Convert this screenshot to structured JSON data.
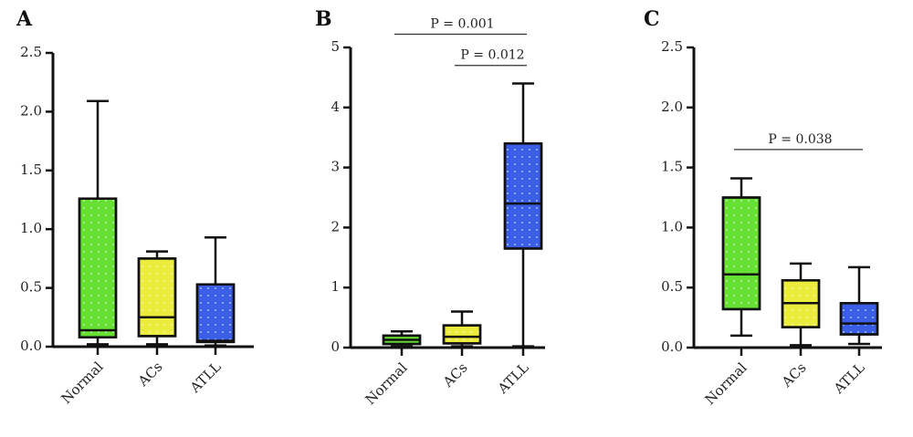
{
  "colors": {
    "Normal": "#66e033",
    "ACs": "#ecec3c",
    "ATLL": "#3a5fe6",
    "stroke": "#111111"
  },
  "chart_data": [
    {
      "panel": "A",
      "type": "box",
      "categories": [
        "Normal",
        "ACs",
        "ATLL"
      ],
      "ylim": [
        0,
        2.5
      ],
      "yticks": [
        "0.0",
        "0.5",
        "1.0",
        "1.5",
        "2.0",
        "2.5"
      ],
      "boxes": [
        {
          "category": "Normal",
          "min": 0.02,
          "q1": 0.08,
          "median": 0.14,
          "q3": 1.26,
          "max": 2.09
        },
        {
          "category": "ACs",
          "min": 0.02,
          "q1": 0.09,
          "median": 0.25,
          "q3": 0.75,
          "max": 0.81
        },
        {
          "category": "ATLL",
          "min": 0.01,
          "q1": 0.04,
          "median": 0.05,
          "q3": 0.53,
          "max": 0.93
        }
      ],
      "pvalues": []
    },
    {
      "panel": "B",
      "type": "box",
      "categories": [
        "Normal",
        "ACs",
        "ATLL"
      ],
      "ylim": [
        0,
        5
      ],
      "yticks": [
        "0",
        "1",
        "2",
        "3",
        "4",
        "5"
      ],
      "boxes": [
        {
          "category": "Normal",
          "min": 0.02,
          "q1": 0.06,
          "median": 0.13,
          "q3": 0.2,
          "max": 0.27
        },
        {
          "category": "ACs",
          "min": 0.02,
          "q1": 0.07,
          "median": 0.18,
          "q3": 0.37,
          "max": 0.6
        },
        {
          "category": "ATLL",
          "min": 0.02,
          "q1": 1.65,
          "median": 2.4,
          "q3": 3.4,
          "max": 4.4
        }
      ],
      "pvalues": [
        {
          "from": "Normal",
          "to": "ATLL",
          "label": "P = 0.001",
          "y": 5.22
        },
        {
          "from": "ACs",
          "to": "ATLL",
          "label": "P = 0.012",
          "y": 4.7
        }
      ]
    },
    {
      "panel": "C",
      "type": "box",
      "categories": [
        "Normal",
        "ACs",
        "ATLL"
      ],
      "ylim": [
        0,
        2.5
      ],
      "yticks": [
        "0.0",
        "0.5",
        "1.0",
        "1.5",
        "2.0",
        "2.5"
      ],
      "boxes": [
        {
          "category": "Normal",
          "min": 0.1,
          "q1": 0.32,
          "median": 0.61,
          "q3": 1.25,
          "max": 1.41
        },
        {
          "category": "ACs",
          "min": 0.02,
          "q1": 0.17,
          "median": 0.37,
          "q3": 0.56,
          "max": 0.7
        },
        {
          "category": "ATLL",
          "min": 0.03,
          "q1": 0.11,
          "median": 0.2,
          "q3": 0.37,
          "max": 0.67
        }
      ],
      "pvalues": [
        {
          "from": "Normal",
          "to": "ATLL",
          "label": "P = 0.038",
          "y": 1.65
        }
      ]
    }
  ]
}
